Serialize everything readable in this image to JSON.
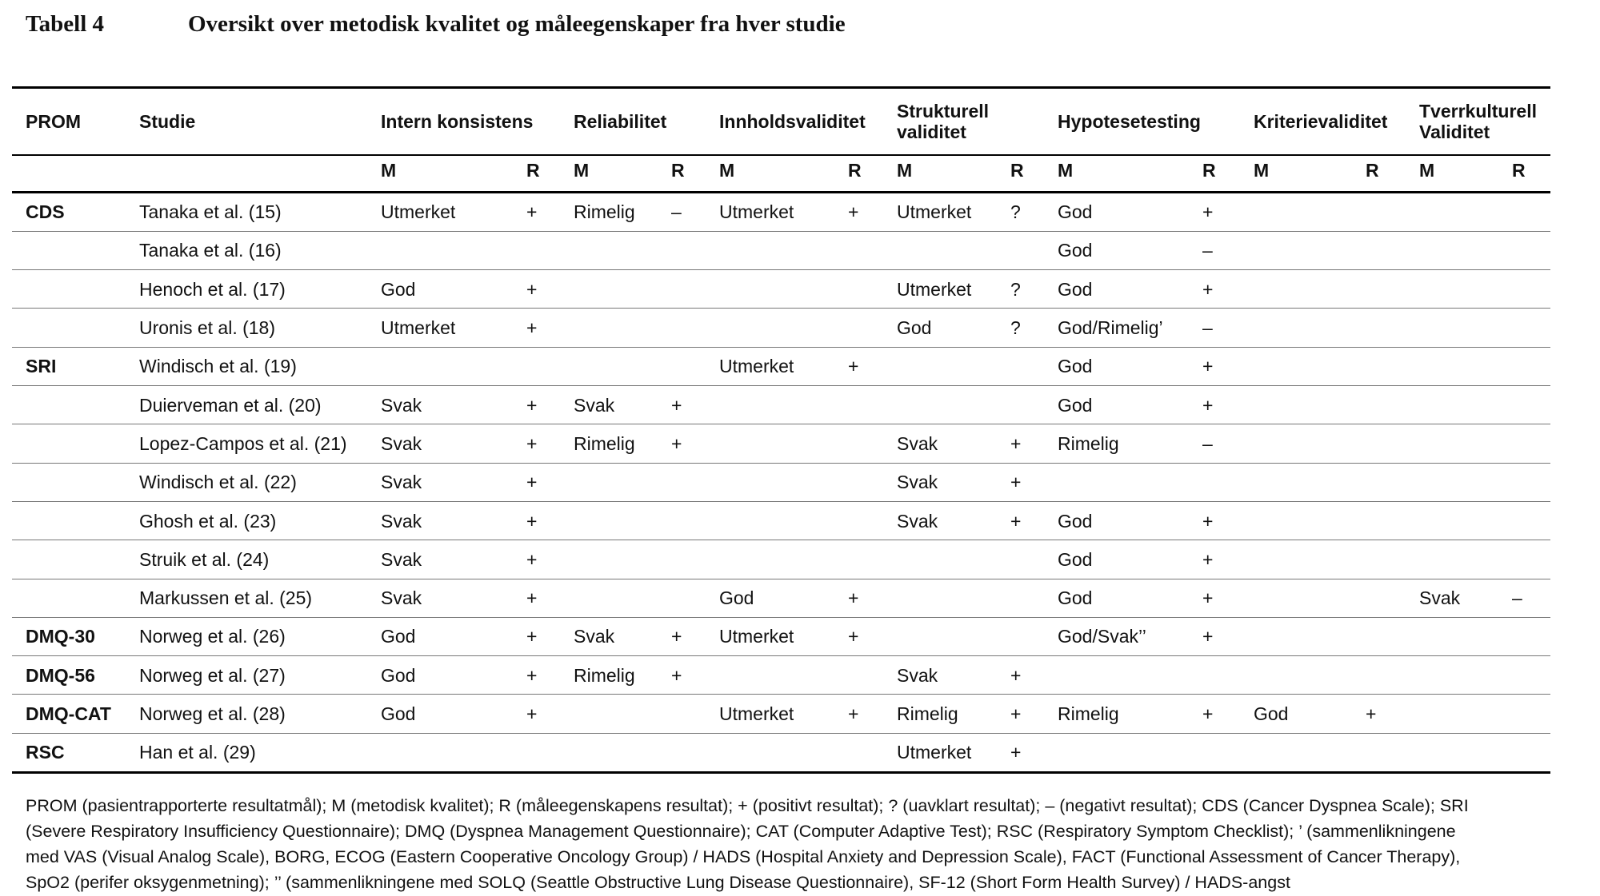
{
  "header": {
    "label": "Tabell 4",
    "title": "Oversikt over metodisk kvalitet og måleegenskaper fra hver studie"
  },
  "table": {
    "columns": [
      "PROM",
      "Studie",
      "Intern konsistens",
      "Reliabilitet",
      "Innholdsvaliditet",
      "Strukturell validitet",
      "Hypotesetesting",
      "Kriterievaliditet",
      "Tverrkulturell Validitet"
    ],
    "subheader": [
      "M",
      "R",
      "M",
      "R",
      "M",
      "R",
      "M",
      "R",
      "M",
      "R",
      "M",
      "R",
      "M",
      "R"
    ],
    "rows": [
      [
        "CDS",
        "Tanaka et al. (15)",
        "Utmerket",
        "+",
        "Rimelig",
        "–",
        "Utmerket",
        "+",
        "Utmerket",
        "?",
        "God",
        "+",
        null,
        null,
        null,
        null
      ],
      [
        null,
        "Tanaka et al. (16)",
        null,
        null,
        null,
        null,
        null,
        null,
        null,
        null,
        "God",
        "–",
        null,
        null,
        null,
        null
      ],
      [
        null,
        "Henoch et al. (17)",
        "God",
        "+",
        null,
        null,
        null,
        null,
        "Utmerket",
        "?",
        "God",
        "+",
        null,
        null,
        null,
        null
      ],
      [
        null,
        "Uronis et al. (18)",
        "Utmerket",
        "+",
        null,
        null,
        null,
        null,
        "God",
        "?",
        "God/Rimelig’",
        "–",
        null,
        null,
        null,
        null
      ],
      [
        "SRI",
        "Windisch et al. (19)",
        null,
        null,
        null,
        null,
        "Utmerket",
        "+",
        null,
        null,
        "God",
        "+",
        null,
        null,
        null,
        null
      ],
      [
        null,
        "Duierveman et al. (20)",
        "Svak",
        "+",
        "Svak",
        "+",
        null,
        null,
        null,
        null,
        "God",
        "+",
        null,
        null,
        null,
        null
      ],
      [
        null,
        "Lopez-Campos et al. (21)",
        "Svak",
        "+",
        "Rimelig",
        "+",
        null,
        null,
        "Svak",
        "+",
        "Rimelig",
        "–",
        null,
        null,
        null,
        null
      ],
      [
        null,
        "Windisch et al. (22)",
        "Svak",
        "+",
        null,
        null,
        null,
        null,
        "Svak",
        "+",
        null,
        null,
        null,
        null,
        null,
        null
      ],
      [
        null,
        "Ghosh et al. (23)",
        "Svak",
        "+",
        null,
        null,
        null,
        null,
        "Svak",
        "+",
        "God",
        "+",
        null,
        null,
        null,
        null
      ],
      [
        null,
        "Struik et al. (24)",
        "Svak",
        "+",
        null,
        null,
        null,
        null,
        null,
        null,
        "God",
        "+",
        null,
        null,
        null,
        null
      ],
      [
        null,
        "Markussen et al. (25)",
        "Svak",
        "+",
        null,
        null,
        "God",
        "+",
        null,
        null,
        "God",
        "+",
        null,
        null,
        "Svak",
        "–"
      ],
      [
        "DMQ-30",
        "Norweg et al. (26)",
        "God",
        "+",
        "Svak",
        "+",
        "Utmerket",
        "+",
        null,
        null,
        "God/Svak’’",
        "+",
        null,
        null,
        null,
        null
      ],
      [
        "DMQ-56",
        "Norweg et al. (27)",
        "God",
        "+",
        "Rimelig",
        "+",
        null,
        null,
        "Svak",
        "+",
        null,
        null,
        null,
        null,
        null,
        null
      ],
      [
        "DMQ-CAT",
        "Norweg et al. (28)",
        "God",
        "+",
        null,
        null,
        "Utmerket",
        "+",
        "Rimelig",
        "+",
        "Rimelig",
        "+",
        "God",
        "+",
        null,
        null
      ],
      [
        "RSC",
        "Han et al. (29)",
        null,
        null,
        null,
        null,
        null,
        null,
        "Utmerket",
        "+",
        null,
        null,
        null,
        null,
        null,
        null
      ]
    ]
  },
  "footnote": {
    "lines": [
      "PROM (pasientrapporterte resultatmål); M (metodisk kvalitet); R (måleegenskapens resultat); + (positivt resultat); ? (uavklart resultat); – (negativt resultat); CDS (Cancer Dyspnea Scale); SRI",
      "(Severe Respiratory Insufficiency Questionnaire); DMQ (Dyspnea Management Questionnaire); CAT (Computer Adaptive Test); RSC (Respiratory Symptom Checklist); ’ (sammenlikningene",
      "med VAS (Visual Analog Scale), BORG, ECOG (Eastern Cooperative Oncology Group) / HADS (Hospital Anxiety and Depression Scale), FACT (Functional Assessment of Cancer Therapy),",
      "SpO2 (perifer oksygenmetning); ’’ (sammenlikningene med SOLQ (Seattle Obstructive Lung Disease Questionnaire), SF-12 (Short Form Health Survey) / HADS-angst"
    ]
  }
}
